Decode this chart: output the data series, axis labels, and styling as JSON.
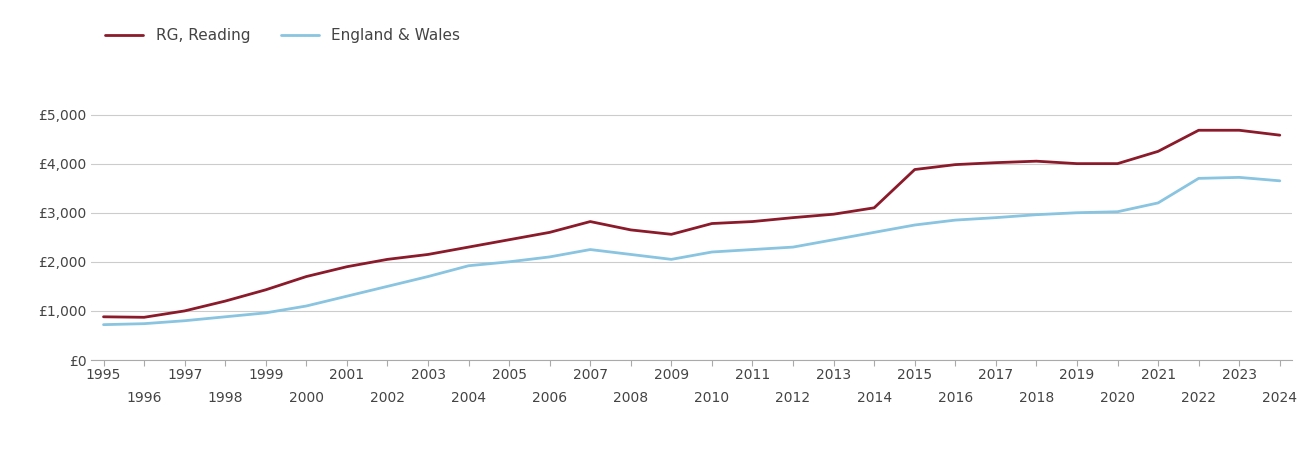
{
  "years": [
    1995,
    1996,
    1997,
    1998,
    1999,
    2000,
    2001,
    2002,
    2003,
    2004,
    2005,
    2006,
    2007,
    2008,
    2009,
    2010,
    2011,
    2012,
    2013,
    2014,
    2015,
    2016,
    2017,
    2018,
    2019,
    2020,
    2021,
    2022,
    2023,
    2024
  ],
  "reading": [
    880,
    870,
    1000,
    1200,
    1430,
    1700,
    1900,
    2050,
    2150,
    2300,
    2450,
    2600,
    2820,
    2650,
    2560,
    2780,
    2820,
    2900,
    2970,
    3100,
    3880,
    3980,
    4020,
    4050,
    4000,
    4000,
    4250,
    4680,
    4680,
    4580
  ],
  "england_wales": [
    720,
    740,
    800,
    880,
    960,
    1100,
    1300,
    1500,
    1700,
    1920,
    2000,
    2100,
    2250,
    2150,
    2050,
    2200,
    2250,
    2300,
    2450,
    2600,
    2750,
    2850,
    2900,
    2960,
    3000,
    3020,
    3200,
    3700,
    3720,
    3650
  ],
  "reading_color": "#8B1A2A",
  "england_wales_color": "#89C4E0",
  "reading_label": "RG, Reading",
  "england_wales_label": "England & Wales",
  "ylim": [
    0,
    5500
  ],
  "yticks": [
    0,
    1000,
    2000,
    3000,
    4000,
    5000
  ],
  "ytick_labels": [
    "£0",
    "£1,000",
    "£2,000",
    "£3,000",
    "£4,000",
    "£5,000"
  ],
  "grid_color": "#cccccc",
  "background_color": "#ffffff",
  "line_width": 2.0,
  "legend_fontsize": 11,
  "tick_fontsize": 10,
  "text_color": "#444444",
  "xlim_left": 1994.7,
  "xlim_right": 2024.3
}
